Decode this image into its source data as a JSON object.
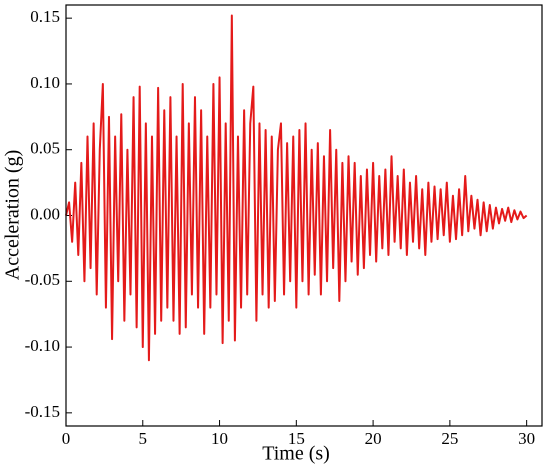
{
  "chart_data": {
    "type": "line",
    "x_label": "Time (s)",
    "y_label": "Acceleration (g)",
    "x": [
      0,
      0.2,
      0.4,
      0.6,
      0.8,
      1,
      1.2,
      1.4,
      1.6,
      1.8,
      2,
      2.2,
      2.4,
      2.6,
      2.8,
      3,
      3.2,
      3.4,
      3.6,
      3.8,
      4,
      4.2,
      4.4,
      4.6,
      4.8,
      5,
      5.2,
      5.4,
      5.6,
      5.8,
      6,
      6.2,
      6.4,
      6.6,
      6.8,
      7,
      7.2,
      7.4,
      7.6,
      7.8,
      8,
      8.2,
      8.4,
      8.6,
      8.8,
      9,
      9.2,
      9.4,
      9.6,
      9.8,
      10,
      10.2,
      10.4,
      10.6,
      10.8,
      11,
      11.2,
      11.4,
      11.6,
      11.8,
      12,
      12.2,
      12.4,
      12.6,
      12.8,
      13,
      13.2,
      13.4,
      13.6,
      13.8,
      14,
      14.2,
      14.4,
      14.6,
      14.8,
      15,
      15.2,
      15.4,
      15.6,
      15.8,
      16,
      16.2,
      16.4,
      16.6,
      16.8,
      17,
      17.2,
      17.4,
      17.6,
      17.8,
      18,
      18.2,
      18.4,
      18.6,
      18.8,
      19,
      19.2,
      19.4,
      19.6,
      19.8,
      20,
      20.2,
      20.4,
      20.6,
      20.8,
      21,
      21.2,
      21.4,
      21.6,
      21.8,
      22,
      22.2,
      22.4,
      22.6,
      22.8,
      23,
      23.2,
      23.4,
      23.6,
      23.8,
      24,
      24.2,
      24.4,
      24.6,
      24.8,
      25,
      25.2,
      25.4,
      25.6,
      25.8,
      26,
      26.2,
      26.4,
      26.6,
      26.8,
      27,
      27.2,
      27.4,
      27.6,
      27.8,
      28,
      28.2,
      28.4,
      28.6,
      28.8,
      29,
      29.2,
      29.4,
      29.6,
      29.8,
      30
    ],
    "series": [
      {
        "color": "#e41a1a",
        "values": [
          0,
          0.01,
          -0.02,
          0.025,
          -0.03,
          0.04,
          -0.05,
          0.06,
          -0.04,
          0.07,
          -0.06,
          0.05,
          0.1,
          -0.07,
          0.075,
          -0.094,
          0.06,
          -0.05,
          0.077,
          -0.08,
          0.05,
          -0.06,
          0.09,
          -0.085,
          0.098,
          -0.1,
          0.07,
          -0.11,
          0.06,
          -0.09,
          0.097,
          -0.08,
          0.08,
          -0.07,
          0.09,
          -0.08,
          0.06,
          -0.09,
          0.1,
          -0.085,
          0.07,
          -0.06,
          0.09,
          -0.07,
          0.08,
          -0.09,
          0.06,
          -0.07,
          0.1,
          -0.06,
          0.105,
          -0.097,
          0.07,
          -0.08,
          0.152,
          -0.095,
          0.06,
          -0.07,
          0.08,
          -0.06,
          0.07,
          0.098,
          -0.08,
          0.07,
          -0.06,
          0.065,
          -0.07,
          0.06,
          -0.065,
          0.05,
          0.07,
          -0.06,
          0.055,
          -0.05,
          0.06,
          -0.07,
          0.065,
          -0.05,
          0.07,
          -0.06,
          0.05,
          -0.045,
          0.055,
          -0.06,
          0.045,
          -0.05,
          0.065,
          -0.04,
          0.05,
          -0.065,
          0.04,
          -0.05,
          0.045,
          -0.035,
          0.04,
          -0.045,
          0.03,
          -0.04,
          0.035,
          -0.03,
          0.04,
          -0.035,
          0.03,
          -0.025,
          0.035,
          -0.03,
          0.045,
          -0.02,
          0.03,
          -0.025,
          0.035,
          -0.03,
          0.025,
          -0.02,
          0.03,
          -0.025,
          0.02,
          -0.03,
          0.025,
          -0.02,
          0.022,
          -0.018,
          0.02,
          -0.015,
          0.025,
          -0.02,
          0.015,
          -0.018,
          0.02,
          -0.015,
          0.03,
          -0.012,
          0.015,
          -0.01,
          0.012,
          -0.015,
          0.01,
          -0.012,
          0.008,
          -0.01,
          0.006,
          -0.006,
          0.005,
          -0.004,
          0.006,
          -0.005,
          0.004,
          -0.003,
          0.003,
          -0.002,
          0
        ]
      }
    ],
    "xlim": [
      0,
      31
    ],
    "xticks": [
      0,
      5,
      10,
      15,
      20,
      25,
      30
    ],
    "ylim": [
      -0.16,
      0.16
    ],
    "yticks": [
      {
        "value": -0.15,
        "label": "-0.15"
      },
      {
        "value": -0.1,
        "label": "-0.10"
      },
      {
        "value": -0.05,
        "label": "-0.05"
      },
      {
        "value": 0,
        "label": "0.00"
      },
      {
        "value": 0.05,
        "label": "0.05"
      },
      {
        "value": 0.1,
        "label": "0.10"
      },
      {
        "value": 0.15,
        "label": "0.15"
      }
    ],
    "grid": false
  }
}
